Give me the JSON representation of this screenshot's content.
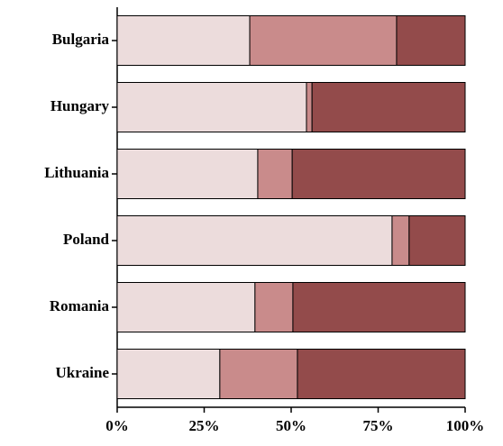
{
  "chart_data": {
    "type": "stacked-barh",
    "categories": [
      "Bulgaria",
      "Hungary",
      "Lithuania",
      "Poland",
      "Romania",
      "Ukraine"
    ],
    "series": [
      {
        "color": "#ecdcdc",
        "values": [
          38.1,
          54.4,
          40.4,
          79.0,
          39.6,
          29.5
        ]
      },
      {
        "color": "#c98b8b",
        "values": [
          42.2,
          1.6,
          9.9,
          4.9,
          10.9,
          22.3
        ]
      },
      {
        "color": "#934b4b",
        "values": [
          19.7,
          44.0,
          49.7,
          16.1,
          49.5,
          48.2
        ]
      }
    ],
    "xlim": [
      0,
      100
    ],
    "xticks": [
      {
        "value": 0,
        "label": "0%"
      },
      {
        "value": 25,
        "label": "25%"
      },
      {
        "value": 50,
        "label": "50%"
      },
      {
        "value": 75,
        "label": "75%"
      },
      {
        "value": 100,
        "label": "100%"
      }
    ]
  }
}
